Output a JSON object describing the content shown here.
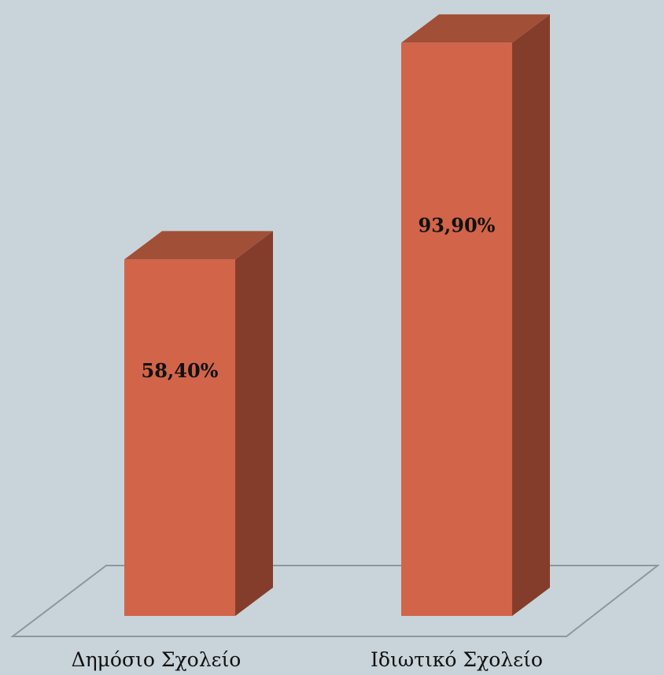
{
  "colors": {
    "background": "#c8d4da",
    "bar_front": "#d16449",
    "bar_top": "#a24f37",
    "bar_side": "#853d2b",
    "floor_stroke": "#8f979b",
    "label_text": "#111111"
  },
  "chart_data": {
    "type": "bar",
    "style": "3d",
    "categories": [
      "Δημόσιο Σχολείο",
      "Ιδιωτικό Σχολείο"
    ],
    "values": [
      58.4,
      93.9
    ],
    "value_labels": [
      "58,40%",
      "93,90%"
    ],
    "ylim": [
      0,
      100
    ],
    "grid": false,
    "legend": "none"
  }
}
